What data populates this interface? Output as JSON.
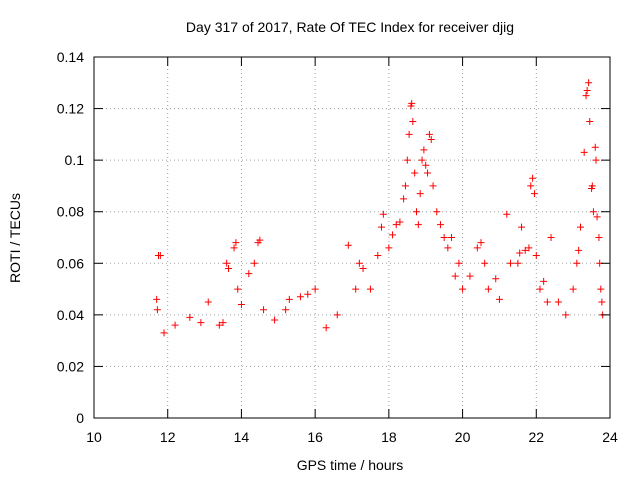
{
  "chart_data": {
    "type": "scatter",
    "title": "Day 317 of 2017, Rate Of TEC Index for receiver djig",
    "xlabel": "GPS time / hours",
    "ylabel": "ROTI / TECUs",
    "xlim": [
      10,
      24
    ],
    "ylim": [
      0,
      0.14
    ],
    "xticks": [
      10,
      12,
      14,
      16,
      18,
      20,
      22,
      24
    ],
    "xtick_labels": [
      "10",
      "12",
      "14",
      "16",
      "18",
      "20",
      "22",
      "24"
    ],
    "yticks": [
      0,
      0.02,
      0.04,
      0.06,
      0.08,
      0.1,
      0.12,
      0.14
    ],
    "ytick_labels": [
      "0",
      "0.02",
      "0.04",
      "0.06",
      "0.08",
      "0.1",
      "0.12",
      "0.14"
    ],
    "grid": true,
    "marker": "+",
    "color": "#ff0000",
    "series": [
      {
        "name": "ROTI",
        "points": [
          [
            11.7,
            0.046
          ],
          [
            11.75,
            0.063
          ],
          [
            11.8,
            0.063
          ],
          [
            11.72,
            0.042
          ],
          [
            11.9,
            0.033
          ],
          [
            12.2,
            0.036
          ],
          [
            12.6,
            0.039
          ],
          [
            12.9,
            0.037
          ],
          [
            13.1,
            0.045
          ],
          [
            13.4,
            0.036
          ],
          [
            13.5,
            0.037
          ],
          [
            13.6,
            0.06
          ],
          [
            13.65,
            0.058
          ],
          [
            13.8,
            0.066
          ],
          [
            13.85,
            0.068
          ],
          [
            13.9,
            0.05
          ],
          [
            14.0,
            0.044
          ],
          [
            14.2,
            0.056
          ],
          [
            14.35,
            0.06
          ],
          [
            14.45,
            0.068
          ],
          [
            14.5,
            0.069
          ],
          [
            14.6,
            0.042
          ],
          [
            14.9,
            0.038
          ],
          [
            15.2,
            0.042
          ],
          [
            15.3,
            0.046
          ],
          [
            15.6,
            0.047
          ],
          [
            15.8,
            0.048
          ],
          [
            16.0,
            0.05
          ],
          [
            16.3,
            0.035
          ],
          [
            16.6,
            0.04
          ],
          [
            16.9,
            0.067
          ],
          [
            17.1,
            0.05
          ],
          [
            17.2,
            0.06
          ],
          [
            17.3,
            0.058
          ],
          [
            17.5,
            0.05
          ],
          [
            17.7,
            0.063
          ],
          [
            17.8,
            0.074
          ],
          [
            17.85,
            0.079
          ],
          [
            18.0,
            0.066
          ],
          [
            18.1,
            0.071
          ],
          [
            18.2,
            0.075
          ],
          [
            18.3,
            0.076
          ],
          [
            18.4,
            0.085
          ],
          [
            18.45,
            0.09
          ],
          [
            18.5,
            0.1
          ],
          [
            18.55,
            0.11
          ],
          [
            18.6,
            0.121
          ],
          [
            18.62,
            0.122
          ],
          [
            18.65,
            0.115
          ],
          [
            18.7,
            0.095
          ],
          [
            18.75,
            0.08
          ],
          [
            18.8,
            0.075
          ],
          [
            18.85,
            0.087
          ],
          [
            18.9,
            0.1
          ],
          [
            18.95,
            0.104
          ],
          [
            19.0,
            0.098
          ],
          [
            19.05,
            0.095
          ],
          [
            19.1,
            0.11
          ],
          [
            19.15,
            0.108
          ],
          [
            19.2,
            0.09
          ],
          [
            19.3,
            0.08
          ],
          [
            19.4,
            0.075
          ],
          [
            19.5,
            0.07
          ],
          [
            19.6,
            0.066
          ],
          [
            19.7,
            0.07
          ],
          [
            19.8,
            0.055
          ],
          [
            19.9,
            0.06
          ],
          [
            20.0,
            0.05
          ],
          [
            20.2,
            0.055
          ],
          [
            20.4,
            0.066
          ],
          [
            20.5,
            0.068
          ],
          [
            20.6,
            0.06
          ],
          [
            20.7,
            0.05
          ],
          [
            20.9,
            0.054
          ],
          [
            21.0,
            0.046
          ],
          [
            21.2,
            0.079
          ],
          [
            21.3,
            0.06
          ],
          [
            21.5,
            0.06
          ],
          [
            21.55,
            0.064
          ],
          [
            21.6,
            0.074
          ],
          [
            21.7,
            0.065
          ],
          [
            21.8,
            0.066
          ],
          [
            21.85,
            0.09
          ],
          [
            21.9,
            0.093
          ],
          [
            21.95,
            0.087
          ],
          [
            22.0,
            0.063
          ],
          [
            22.1,
            0.05
          ],
          [
            22.2,
            0.053
          ],
          [
            22.3,
            0.045
          ],
          [
            22.4,
            0.07
          ],
          [
            22.6,
            0.045
          ],
          [
            22.8,
            0.04
          ],
          [
            23.0,
            0.05
          ],
          [
            23.1,
            0.06
          ],
          [
            23.15,
            0.065
          ],
          [
            23.2,
            0.074
          ],
          [
            23.3,
            0.103
          ],
          [
            23.35,
            0.125
          ],
          [
            23.38,
            0.127
          ],
          [
            23.42,
            0.13
          ],
          [
            23.45,
            0.115
          ],
          [
            23.5,
            0.089
          ],
          [
            23.52,
            0.09
          ],
          [
            23.55,
            0.08
          ],
          [
            23.6,
            0.105
          ],
          [
            23.62,
            0.1
          ],
          [
            23.65,
            0.078
          ],
          [
            23.7,
            0.07
          ],
          [
            23.72,
            0.06
          ],
          [
            23.75,
            0.05
          ],
          [
            23.78,
            0.045
          ],
          [
            23.8,
            0.04
          ]
        ]
      }
    ]
  }
}
